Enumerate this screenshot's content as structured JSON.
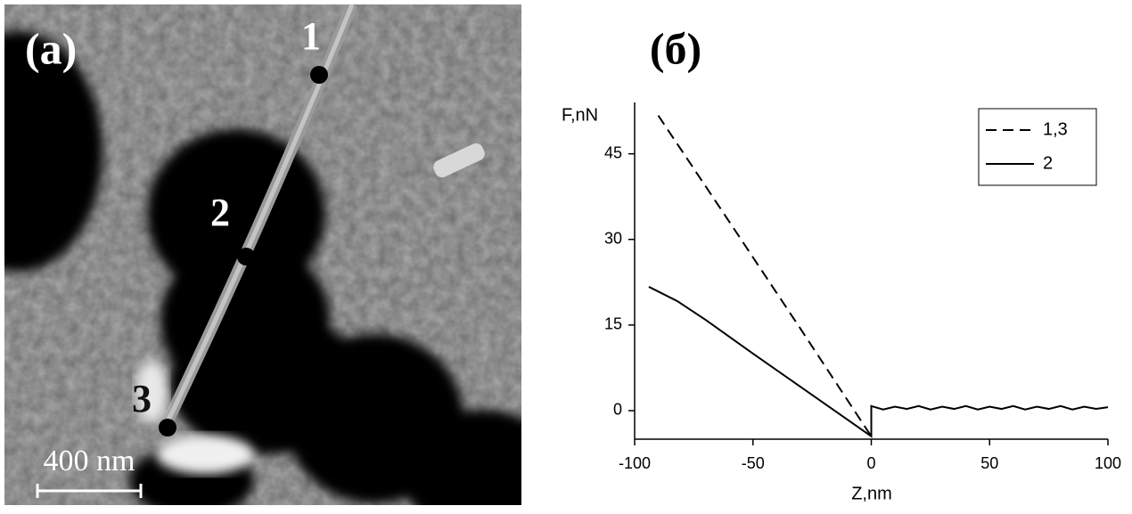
{
  "image": {
    "panel_label": "(a)",
    "points": [
      "1",
      "2",
      "3"
    ],
    "scale_bar": "400 nm"
  },
  "chart_data": {
    "type": "line",
    "title": "(б)",
    "x_label": "Z,nm",
    "y_label": "F,nN",
    "xlim": [
      -100,
      100
    ],
    "xticks": [
      -100,
      -50,
      0,
      50,
      100
    ],
    "ylim": [
      -5,
      54
    ],
    "yticks": [
      0,
      15,
      30,
      45
    ],
    "grid": false,
    "legend": "upper right",
    "series": [
      {
        "name": "1,3",
        "color": "#000000",
        "style": "dashed",
        "x": [
          -90,
          -60,
          -30,
          0
        ],
        "values": [
          51.7,
          33.1,
          14.4,
          -4.5
        ]
      },
      {
        "name": "2",
        "color": "#000000",
        "style": "solid",
        "x": [
          -94,
          -82,
          -70,
          -50,
          -30,
          -10,
          0,
          0,
          5,
          10,
          15,
          20,
          25,
          30,
          35,
          40,
          45,
          50,
          55,
          60,
          65,
          70,
          75,
          80,
          85,
          90,
          95,
          100
        ],
        "values": [
          21.7,
          19.2,
          15.9,
          10.0,
          4.2,
          -1.6,
          -4.5,
          0.8,
          0.2,
          0.7,
          0.3,
          0.8,
          0.2,
          0.7,
          0.3,
          0.8,
          0.2,
          0.7,
          0.3,
          0.8,
          0.2,
          0.7,
          0.3,
          0.8,
          0.2,
          0.7,
          0.3,
          0.6
        ]
      }
    ]
  }
}
